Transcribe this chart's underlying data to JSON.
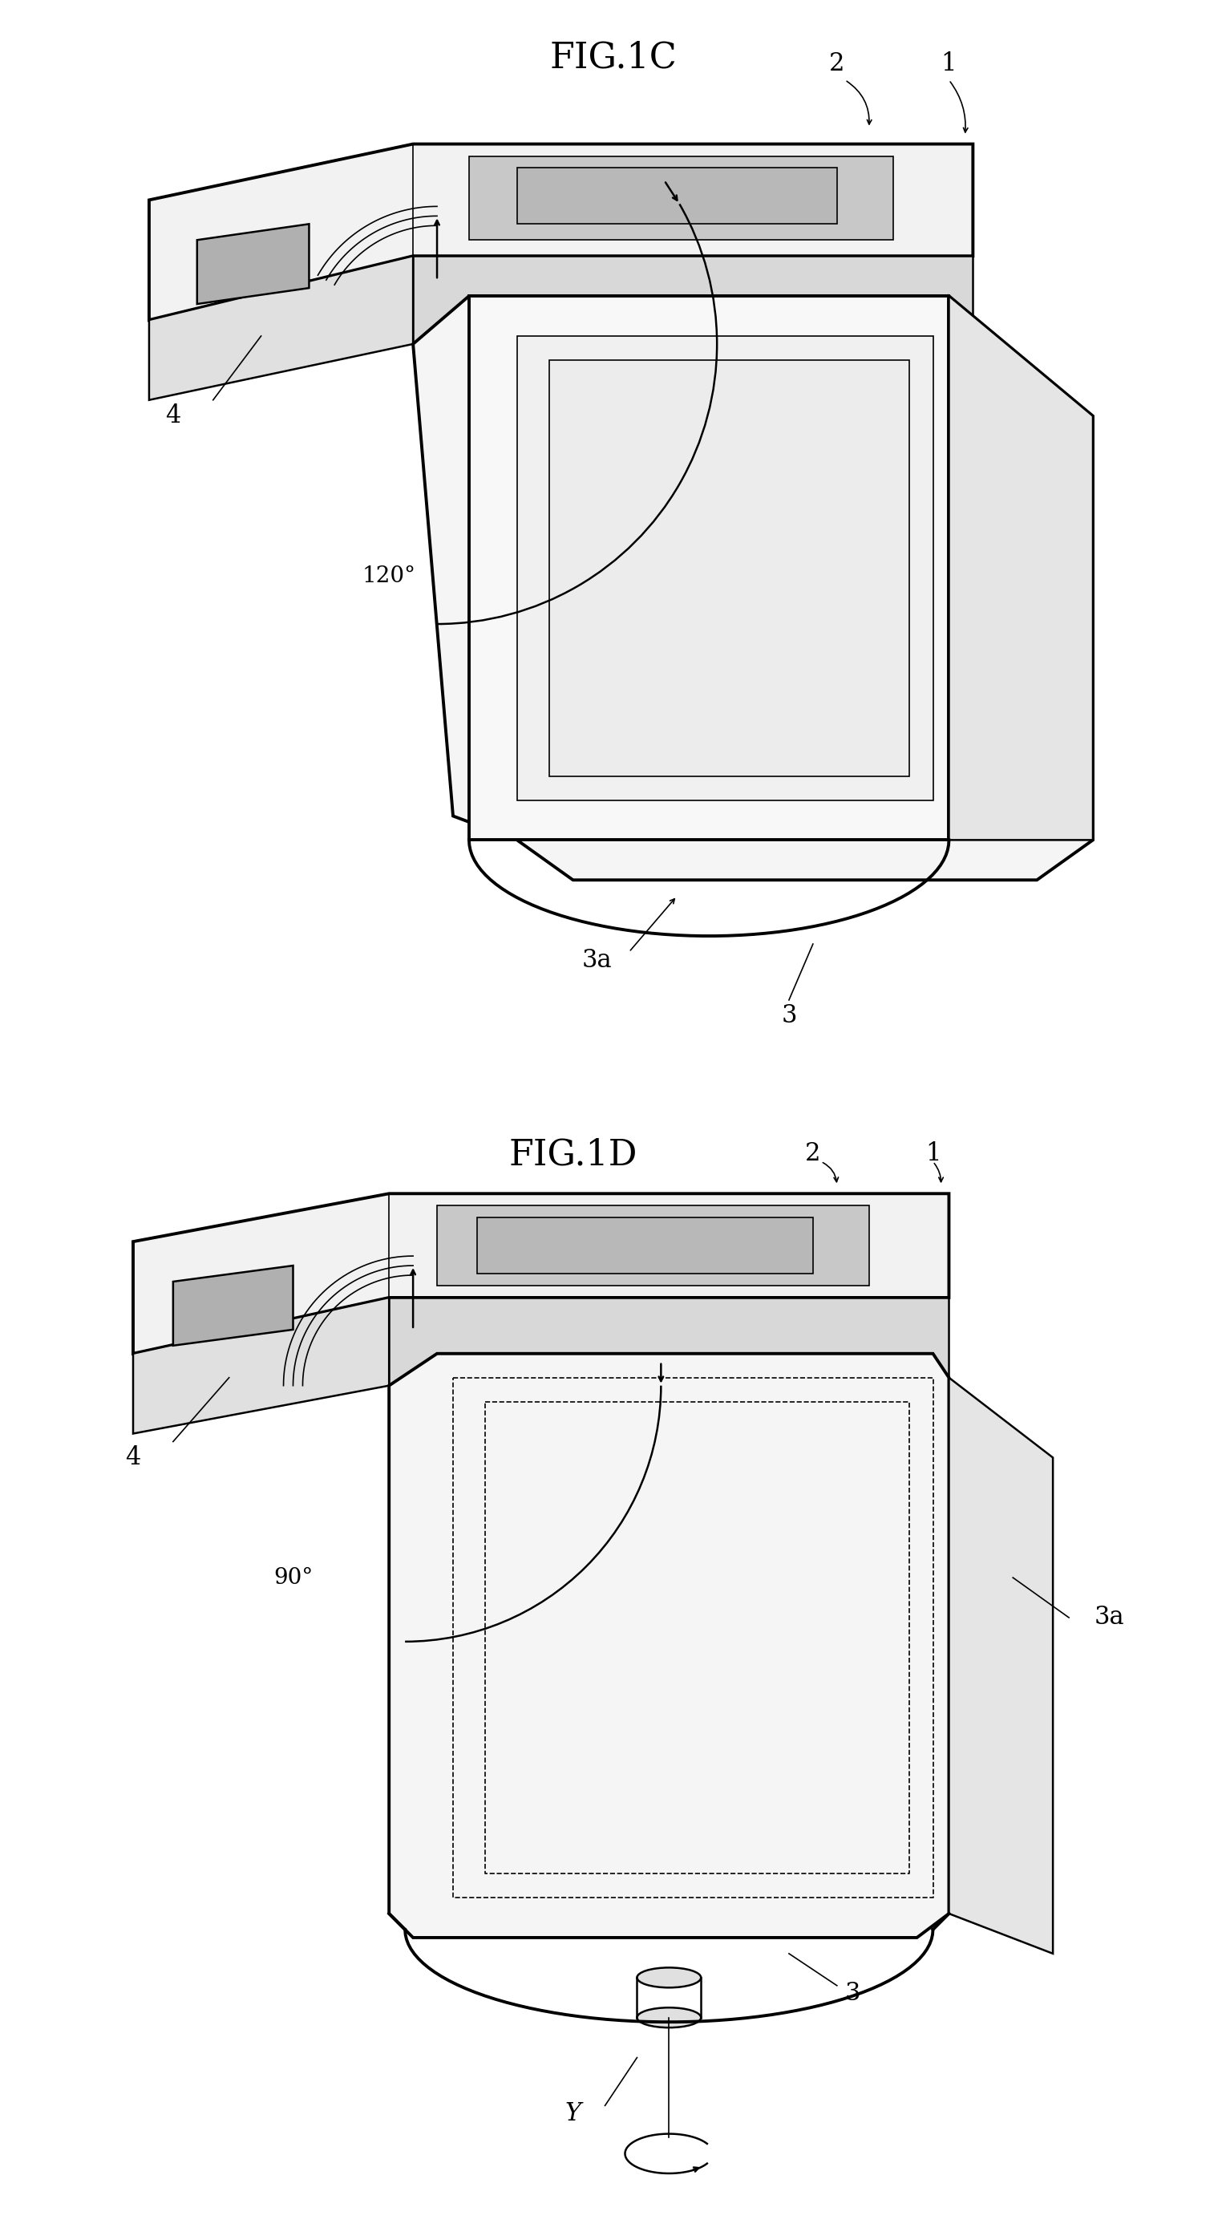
{
  "fig_title_1": "FIG.1C",
  "fig_title_2": "FIG.1D",
  "label_1": "1",
  "label_2": "2",
  "label_3": "3",
  "label_3a": "3a",
  "label_4": "4",
  "label_y": "Y",
  "angle_1": "120°",
  "angle_2": "90°",
  "bg_color": "#ffffff",
  "line_color": "#000000",
  "fig_width": 15.29,
  "fig_height": 27.93,
  "title_fontsize": 32,
  "label_fontsize": 22
}
